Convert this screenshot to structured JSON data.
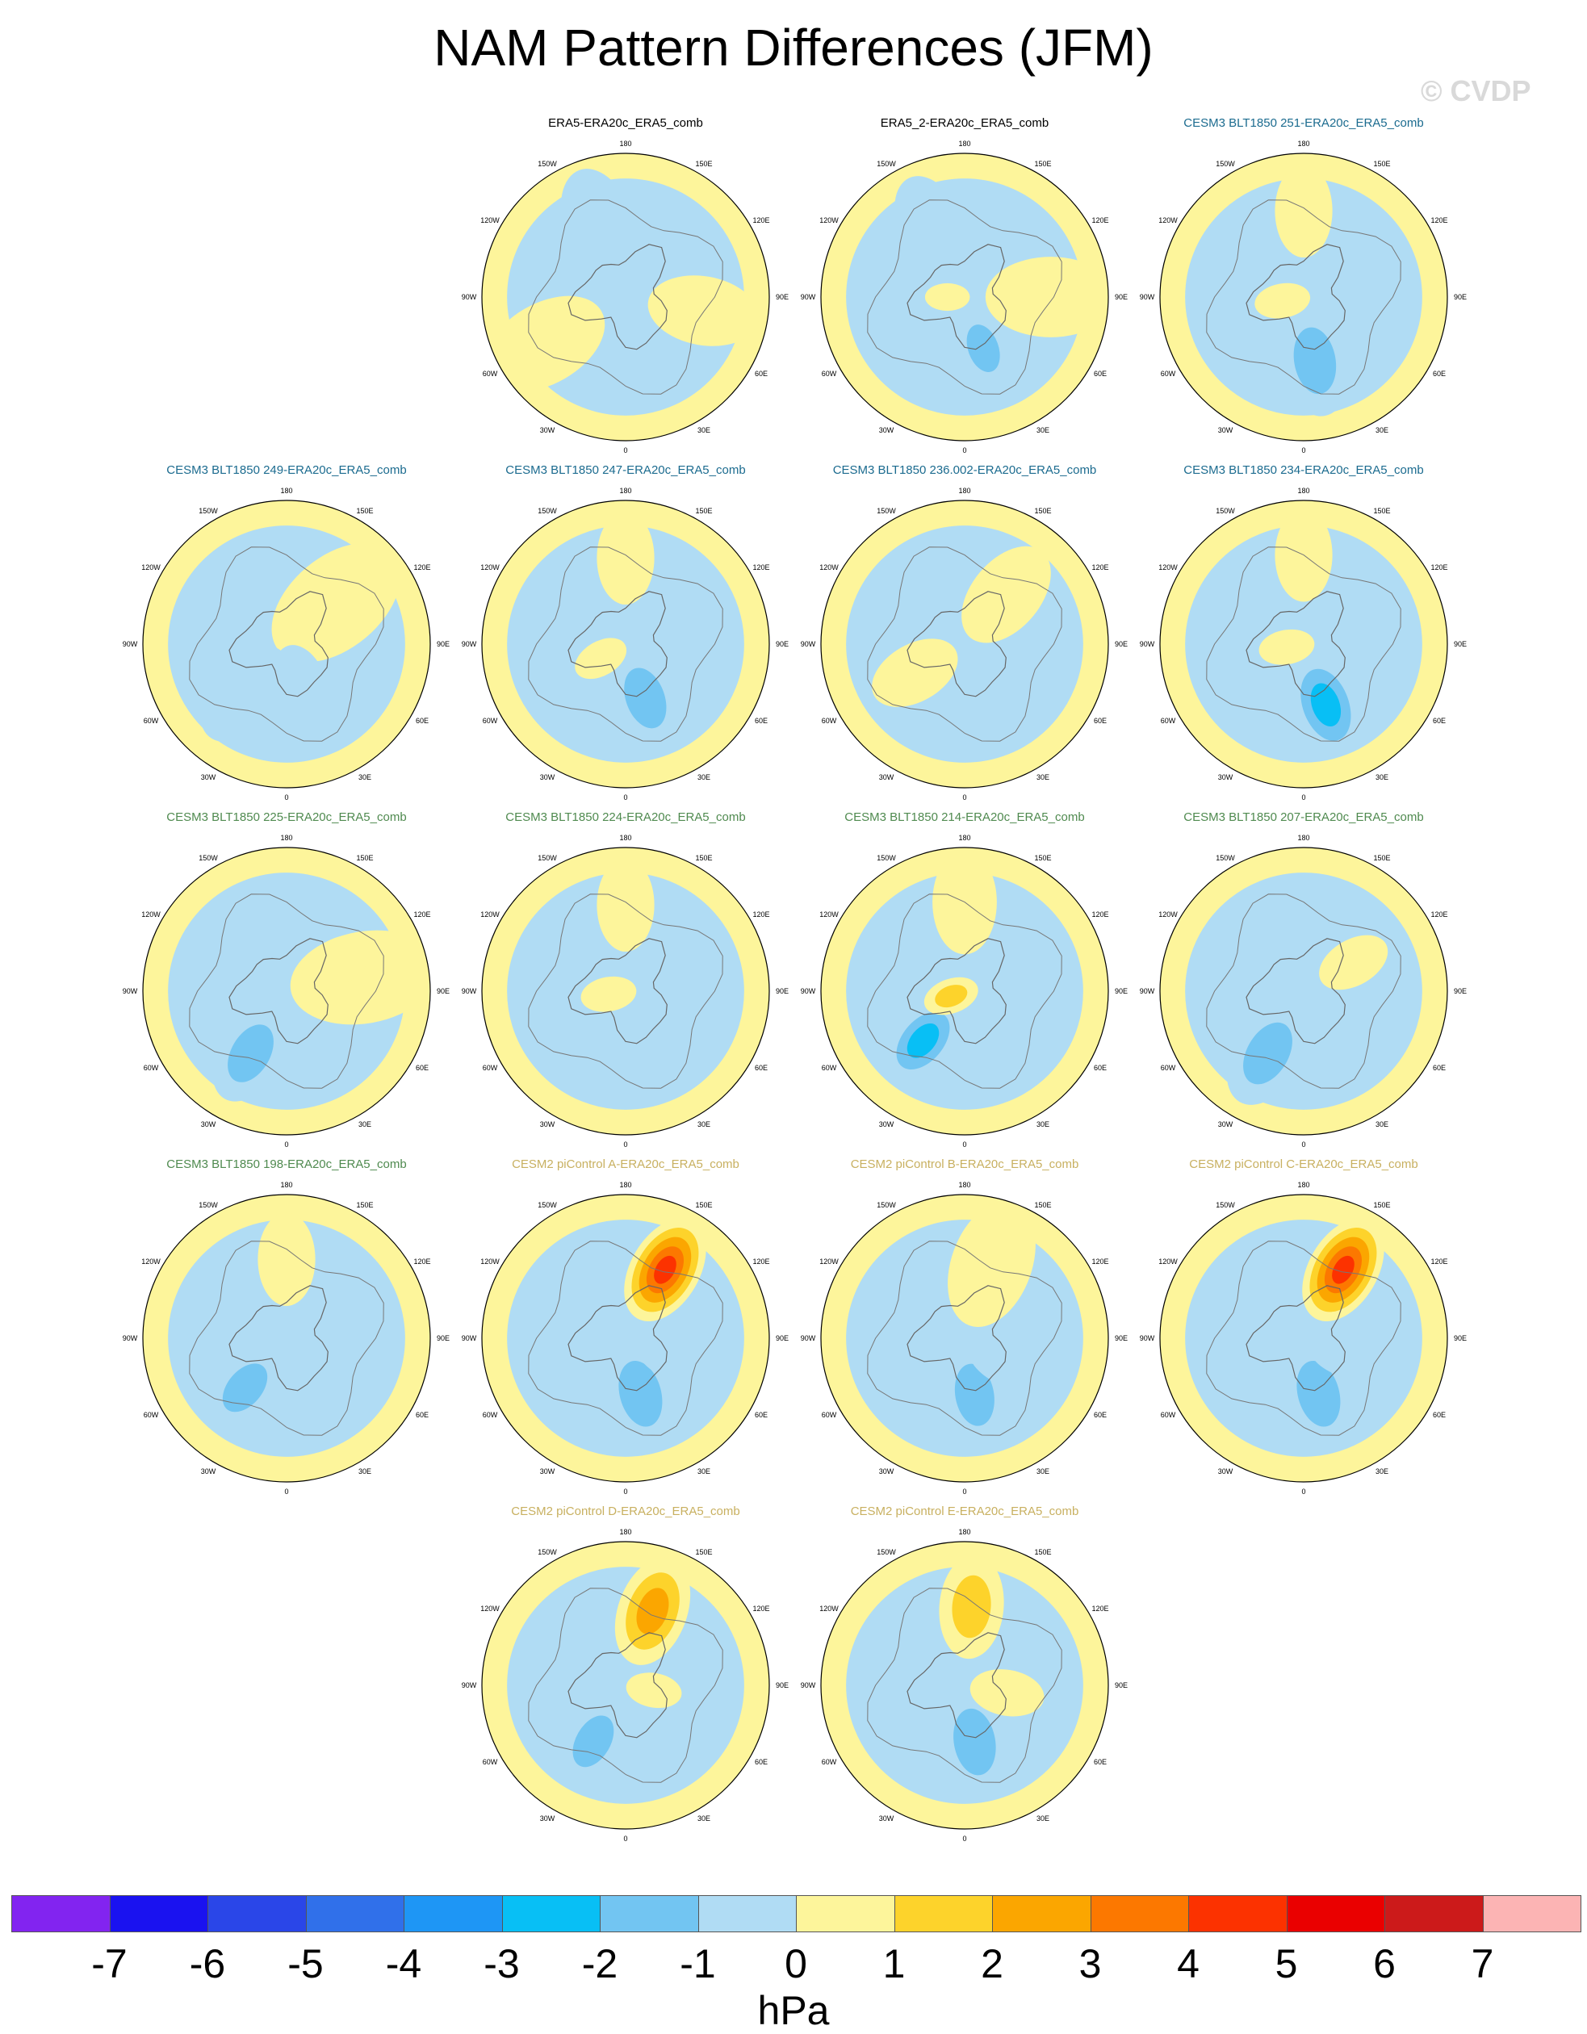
{
  "title": "NAM Pattern Differences (JFM)",
  "watermark": "© CVDP",
  "units": "hPa",
  "lon_labels": [
    "180",
    "150E",
    "120E",
    "90E",
    "60E",
    "30E",
    "0",
    "30W",
    "60W",
    "90W",
    "120W",
    "150W"
  ],
  "colors": {
    "obs_title": "#000000",
    "cesm3_a_title": "#1b6b8f",
    "cesm3_b_title": "#4f8a4f",
    "cesm2_title": "#c8b060"
  },
  "chart_data": {
    "type": "heatmap",
    "projection": "north-polar-stereographic",
    "colorbar": {
      "levels": [
        -7,
        -6,
        -5,
        -4,
        -3,
        -2,
        -1,
        0,
        1,
        2,
        3,
        4,
        5,
        6,
        7
      ],
      "colors": [
        "#8224f0",
        "#1a12f0",
        "#2a46e8",
        "#3070ea",
        "#1e96f5",
        "#08bff5",
        "#72c5f2",
        "#b0dcf4",
        "#fdf59b",
        "#fdd32b",
        "#fba600",
        "#fc7800",
        "#fc3200",
        "#ea0000",
        "#cc1a1a",
        "#fcb4b4"
      ]
    },
    "panels": [
      {
        "title": "ERA5-ERA20c_ERA5_comb",
        "group": "obs",
        "blobs": [
          {
            "lon": 200,
            "r": 0.55,
            "w": 0.3,
            "v": -1
          },
          {
            "lon": 25,
            "r": 0.35,
            "w": 0.22,
            "v": -1
          },
          {
            "lon": 80,
            "r": 0.55,
            "w": 0.3,
            "v": 0.5
          },
          {
            "lon": 300,
            "r": 0.65,
            "w": 0.35,
            "v": 0.5
          }
        ]
      },
      {
        "title": "ERA5_2-ERA20c_ERA5_comb",
        "group": "obs",
        "blobs": [
          {
            "lon": 205,
            "r": 0.55,
            "w": 0.28,
            "v": -1
          },
          {
            "lon": 20,
            "r": 0.38,
            "w": 0.22,
            "v": -2
          },
          {
            "lon": 270,
            "r": 0.12,
            "w": 0.12,
            "v": 1
          },
          {
            "lon": 90,
            "r": 0.6,
            "w": 0.35,
            "v": 0.5
          }
        ]
      },
      {
        "title": "CESM3 BLT1850 251-ERA20c_ERA5_comb",
        "group": "cesm3a",
        "blobs": [
          {
            "lon": 180,
            "r": 0.6,
            "w": 0.25,
            "v": 1
          },
          {
            "lon": 10,
            "r": 0.45,
            "w": 0.3,
            "v": -2
          },
          {
            "lon": 280,
            "r": 0.15,
            "w": 0.15,
            "v": 1
          }
        ]
      },
      {
        "title": "CESM3 BLT1850 249-ERA20c_ERA5_comb",
        "group": "cesm3a",
        "blobs": [
          {
            "lon": 130,
            "r": 0.45,
            "w": 0.4,
            "v": 1
          },
          {
            "lon": 320,
            "r": 0.45,
            "w": 0.3,
            "v": -1
          },
          {
            "lon": 20,
            "r": 0.3,
            "w": 0.22,
            "v": -1
          }
        ]
      },
      {
        "title": "CESM3 BLT1850 247-ERA20c_ERA5_comb",
        "group": "cesm3a",
        "blobs": [
          {
            "lon": 180,
            "r": 0.6,
            "w": 0.25,
            "v": 1
          },
          {
            "lon": 20,
            "r": 0.4,
            "w": 0.28,
            "v": -2
          },
          {
            "lon": 300,
            "r": 0.2,
            "w": 0.15,
            "v": 1
          }
        ]
      },
      {
        "title": "CESM3 BLT1850 236.002-ERA20c_ERA5_comb",
        "group": "cesm3a",
        "blobs": [
          {
            "lon": 140,
            "r": 0.45,
            "w": 0.3,
            "v": 1
          },
          {
            "lon": 10,
            "r": 0.4,
            "w": 0.28,
            "v": -1
          },
          {
            "lon": 300,
            "r": 0.4,
            "w": 0.25,
            "v": 0.5
          }
        ]
      },
      {
        "title": "CESM3 BLT1850 234-ERA20c_ERA5_comb",
        "group": "cesm3a",
        "blobs": [
          {
            "lon": 180,
            "r": 0.62,
            "w": 0.25,
            "v": 1
          },
          {
            "lon": 20,
            "r": 0.45,
            "w": 0.28,
            "v": -3
          },
          {
            "lon": 280,
            "r": 0.12,
            "w": 0.15,
            "v": 1
          }
        ]
      },
      {
        "title": "CESM3 BLT1850 225-ERA20c_ERA5_comb",
        "group": "cesm3b",
        "blobs": [
          {
            "lon": 330,
            "r": 0.5,
            "w": 0.28,
            "v": -2
          },
          {
            "lon": 100,
            "r": 0.55,
            "w": 0.4,
            "v": 0.5
          },
          {
            "lon": 120,
            "r": 0.4,
            "w": 0.2,
            "v": 1
          }
        ]
      },
      {
        "title": "CESM3 BLT1850 224-ERA20c_ERA5_comb",
        "group": "cesm3b",
        "blobs": [
          {
            "lon": 180,
            "r": 0.6,
            "w": 0.25,
            "v": 1
          },
          {
            "lon": 20,
            "r": 0.45,
            "w": 0.28,
            "v": -1
          },
          {
            "lon": 280,
            "r": 0.12,
            "w": 0.15,
            "v": 1
          }
        ]
      },
      {
        "title": "CESM3 BLT1850 214-ERA20c_ERA5_comb",
        "group": "cesm3b",
        "blobs": [
          {
            "lon": 180,
            "r": 0.62,
            "w": 0.28,
            "v": 1
          },
          {
            "lon": 320,
            "r": 0.45,
            "w": 0.25,
            "v": -3
          },
          {
            "lon": 290,
            "r": 0.1,
            "w": 0.15,
            "v": 2
          }
        ]
      },
      {
        "title": "CESM3 BLT1850 207-ERA20c_ERA5_comb",
        "group": "cesm3b",
        "blobs": [
          {
            "lon": 330,
            "r": 0.5,
            "w": 0.3,
            "v": -2
          },
          {
            "lon": 120,
            "r": 0.4,
            "w": 0.2,
            "v": 1
          },
          {
            "lon": 20,
            "r": 0.3,
            "w": 0.2,
            "v": -1
          }
        ]
      },
      {
        "title": "CESM3 BLT1850 198-ERA20c_ERA5_comb",
        "group": "cesm3b",
        "blobs": [
          {
            "lon": 180,
            "r": 0.55,
            "w": 0.25,
            "v": 1
          },
          {
            "lon": 320,
            "r": 0.45,
            "w": 0.25,
            "v": -2
          },
          {
            "lon": 20,
            "r": 0.3,
            "w": 0.2,
            "v": -1
          }
        ]
      },
      {
        "title": "CESM2 piControl A-ERA20c_ERA5_comb",
        "group": "cesm2",
        "blobs": [
          {
            "lon": 150,
            "r": 0.55,
            "w": 0.3,
            "v": 5
          },
          {
            "lon": 15,
            "r": 0.4,
            "w": 0.3,
            "v": -2
          },
          {
            "lon": 70,
            "r": 0.35,
            "w": 0.2,
            "v": -1
          }
        ]
      },
      {
        "title": "CESM2 piControl B-ERA20c_ERA5_comb",
        "group": "cesm2",
        "blobs": [
          {
            "lon": 10,
            "r": 0.4,
            "w": 0.28,
            "v": -2
          },
          {
            "lon": 60,
            "r": 0.3,
            "w": 0.2,
            "v": -1
          },
          {
            "lon": 160,
            "r": 0.55,
            "w": 0.35,
            "v": 0.5
          }
        ]
      },
      {
        "title": "CESM2 piControl C-ERA20c_ERA5_comb",
        "group": "cesm2",
        "blobs": [
          {
            "lon": 150,
            "r": 0.55,
            "w": 0.3,
            "v": 5
          },
          {
            "lon": 15,
            "r": 0.4,
            "w": 0.3,
            "v": -2
          },
          {
            "lon": 70,
            "r": 0.3,
            "w": 0.2,
            "v": -1
          }
        ]
      },
      {
        "title": "CESM2 piControl D-ERA20c_ERA5_comb",
        "group": "cesm2",
        "blobs": [
          {
            "lon": 160,
            "r": 0.55,
            "w": 0.3,
            "v": 3
          },
          {
            "lon": 330,
            "r": 0.45,
            "w": 0.25,
            "v": -2
          },
          {
            "lon": 80,
            "r": 0.2,
            "w": 0.15,
            "v": 1
          }
        ]
      },
      {
        "title": "CESM2 piControl E-ERA20c_ERA5_comb",
        "group": "cesm2",
        "blobs": [
          {
            "lon": 175,
            "r": 0.55,
            "w": 0.28,
            "v": 2
          },
          {
            "lon": 10,
            "r": 0.4,
            "w": 0.3,
            "v": -2
          },
          {
            "lon": 80,
            "r": 0.3,
            "w": 0.2,
            "v": 0.5
          }
        ]
      }
    ]
  }
}
